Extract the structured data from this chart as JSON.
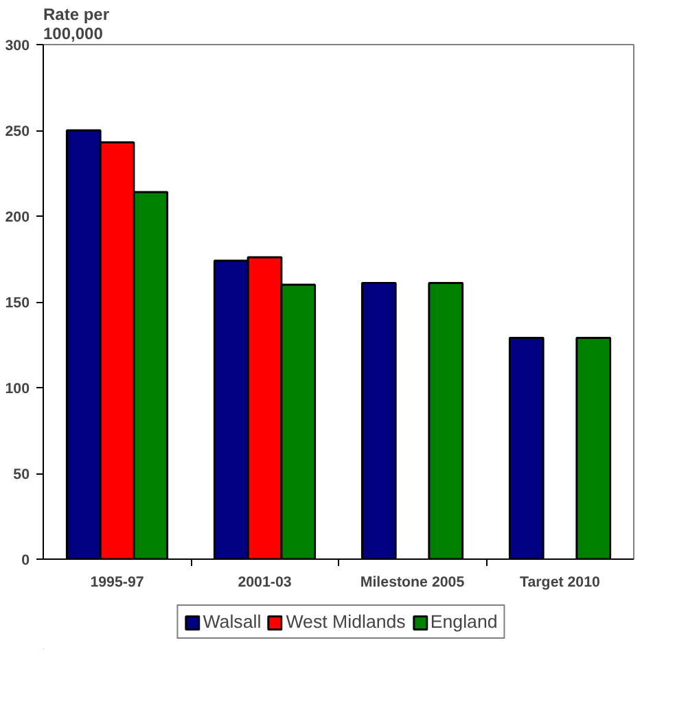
{
  "chart_data": {
    "type": "bar",
    "ylabel": "Rate per\n100,000",
    "categories": [
      "1995-97",
      "2001-03",
      "Milestone 2005",
      "Target 2010"
    ],
    "series": [
      {
        "name": "Walsall",
        "color": "#000080",
        "values": [
          250,
          174,
          161,
          129
        ]
      },
      {
        "name": "West Midlands",
        "color": "#ff0000",
        "values": [
          243,
          176,
          null,
          null
        ]
      },
      {
        "name": "England",
        "color": "#008000",
        "values": [
          214,
          160,
          161,
          129
        ]
      }
    ],
    "ylim": [
      0,
      300
    ],
    "yticks": [
      0,
      50,
      100,
      150,
      200,
      250,
      300
    ],
    "grid": false,
    "legend": "bottom"
  }
}
